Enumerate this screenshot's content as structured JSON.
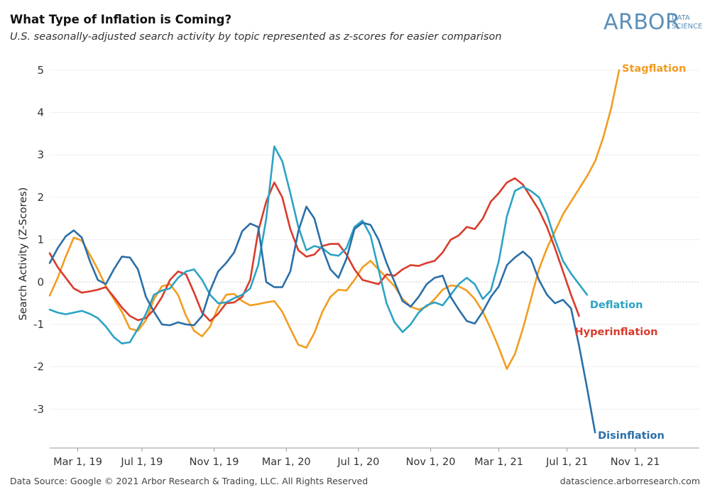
{
  "header": {
    "title": "What Type of Inflation is Coming?",
    "subtitle": "U.S. seasonally-adjusted search activity by topic represented as z-scores for easier comparison",
    "logo_main": "ARBOR",
    "logo_sub_1": "DATA",
    "logo_sub_2": "SCIENCE"
  },
  "footer": {
    "source": "Data Source: Google © 2021 Arbor Research & Trading, LLC. All Rights Reserved",
    "site": "datascience.arborresearch.com"
  },
  "chart_data": {
    "type": "line",
    "ylabel": "Search Activity (Z-Scores)",
    "ylim": [
      -3.9,
      5.4
    ],
    "yticks": [
      5,
      4,
      3,
      2,
      1,
      0,
      -1,
      -2,
      -3
    ],
    "xlim": [
      0,
      81
    ],
    "xticks": [
      {
        "pos": 3.5,
        "label": "Mar 1, 19"
      },
      {
        "pos": 11.5,
        "label": "Jul 1, 19"
      },
      {
        "pos": 20.5,
        "label": "Nov 1, 19"
      },
      {
        "pos": 29.5,
        "label": "Mar 1, 20"
      },
      {
        "pos": 38.5,
        "label": "Jul 1, 20"
      },
      {
        "pos": 47.5,
        "label": "Nov 1, 20"
      },
      {
        "pos": 56,
        "label": "Mar 1, 21"
      },
      {
        "pos": 64.5,
        "label": "Jul 1, 21"
      },
      {
        "pos": 73,
        "label": "Nov 1, 21"
      }
    ],
    "grid": "horizontal",
    "zero_line": "dotted",
    "series": [
      {
        "name": "Stagflation",
        "color": "#F39C1F",
        "values": [
          -0.32,
          0.1,
          0.6,
          1.05,
          0.98,
          0.65,
          0.3,
          -0.1,
          -0.4,
          -0.7,
          -1.1,
          -1.15,
          -0.9,
          -0.4,
          -0.1,
          -0.05,
          -0.3,
          -0.8,
          -1.15,
          -1.28,
          -1.05,
          -0.6,
          -0.3,
          -0.28,
          -0.45,
          -0.55,
          -0.52,
          -0.48,
          -0.45,
          -0.7,
          -1.1,
          -1.48,
          -1.55,
          -1.2,
          -0.7,
          -0.35,
          -0.18,
          -0.2,
          0.05,
          0.35,
          0.5,
          0.3,
          0.1,
          -0.1,
          -0.4,
          -0.58,
          -0.65,
          -0.58,
          -0.4,
          -0.18,
          -0.08,
          -0.1,
          -0.2,
          -0.4,
          -0.7,
          -1.1,
          -1.55,
          -2.05,
          -1.7,
          -1.1,
          -0.4,
          0.3,
          0.8,
          1.2,
          1.6,
          1.9,
          2.2,
          2.5,
          2.85,
          3.4,
          4.1,
          5.0
        ]
      },
      {
        "name": "Hyperinflation",
        "color": "#D93B2B",
        "values": [
          0.68,
          0.35,
          0.1,
          -0.15,
          -0.25,
          -0.22,
          -0.18,
          -0.12,
          -0.35,
          -0.6,
          -0.8,
          -0.9,
          -0.85,
          -0.65,
          -0.35,
          0.05,
          0.25,
          0.18,
          -0.25,
          -0.72,
          -0.92,
          -0.75,
          -0.5,
          -0.48,
          -0.35,
          0.05,
          1.2,
          1.9,
          2.35,
          2.0,
          1.25,
          0.75,
          0.6,
          0.65,
          0.85,
          0.9,
          0.9,
          0.65,
          0.3,
          0.05,
          0.0,
          -0.05,
          0.18,
          0.15,
          0.3,
          0.4,
          0.38,
          0.45,
          0.5,
          0.7,
          1.0,
          1.1,
          1.3,
          1.25,
          1.5,
          1.9,
          2.1,
          2.35,
          2.45,
          2.3,
          2.0,
          1.7,
          1.3,
          0.8,
          0.25,
          -0.3,
          -0.8
        ]
      },
      {
        "name": "Deflation",
        "color": "#2BA3C4",
        "values": [
          -0.65,
          -0.72,
          -0.76,
          -0.72,
          -0.68,
          -0.75,
          -0.85,
          -1.05,
          -1.3,
          -1.45,
          -1.42,
          -1.1,
          -0.75,
          -0.3,
          -0.2,
          -0.15,
          0.1,
          0.25,
          0.3,
          0.05,
          -0.3,
          -0.5,
          -0.48,
          -0.38,
          -0.3,
          -0.15,
          0.4,
          1.5,
          3.2,
          2.85,
          2.1,
          1.3,
          0.75,
          0.85,
          0.8,
          0.65,
          0.62,
          0.8,
          1.3,
          1.45,
          1.1,
          0.3,
          -0.5,
          -0.95,
          -1.18,
          -1.0,
          -0.72,
          -0.55,
          -0.48,
          -0.55,
          -0.3,
          -0.05,
          0.1,
          -0.05,
          -0.4,
          -0.2,
          0.5,
          1.55,
          2.15,
          2.25,
          2.15,
          2.0,
          1.6,
          1.0,
          0.5,
          0.2,
          -0.05,
          -0.3
        ]
      },
      {
        "name": "Disinflation",
        "color": "#2A6FA8",
        "values": [
          0.45,
          0.8,
          1.08,
          1.22,
          1.05,
          0.5,
          0.05,
          -0.05,
          0.3,
          0.6,
          0.58,
          0.3,
          -0.35,
          -0.7,
          -1.0,
          -1.02,
          -0.95,
          -1.0,
          -1.02,
          -0.8,
          -0.2,
          0.25,
          0.45,
          0.7,
          1.2,
          1.38,
          1.3,
          0.0,
          -0.12,
          -0.12,
          0.25,
          1.2,
          1.78,
          1.5,
          0.8,
          0.3,
          0.1,
          0.55,
          1.25,
          1.4,
          1.35,
          1.0,
          0.45,
          0.0,
          -0.45,
          -0.58,
          -0.35,
          -0.05,
          0.1,
          0.15,
          -0.35,
          -0.65,
          -0.92,
          -0.98,
          -0.7,
          -0.35,
          -0.1,
          0.4,
          0.58,
          0.72,
          0.55,
          0.05,
          -0.3,
          -0.5,
          -0.42,
          -0.62,
          -1.5,
          -2.5,
          -3.55
        ]
      }
    ]
  }
}
